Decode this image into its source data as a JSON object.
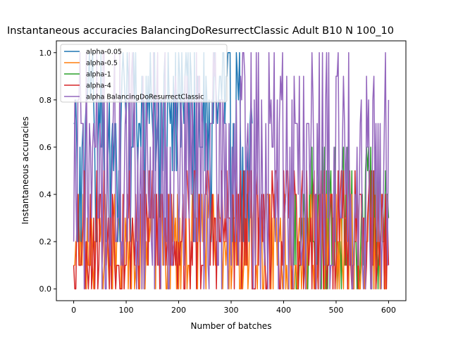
{
  "chart_data": {
    "type": "line",
    "title": "Instantaneous accuracies BalancingDoResurrectClassic Adult B10 N 100_10",
    "xlabel": "Number of batches",
    "ylabel": "Instantaneous accuracies",
    "xlim": [
      -33,
      633
    ],
    "ylim": [
      -0.05,
      1.05
    ],
    "xticks": [
      "0",
      "100",
      "200",
      "300",
      "400",
      "500",
      "600"
    ],
    "yticks": [
      "0.0",
      "0.2",
      "0.4",
      "0.6",
      "0.8",
      "1.0"
    ],
    "grid": false,
    "legend_position": "top-left",
    "x_range": [
      0,
      600
    ],
    "series": [
      {
        "name": "alpha-0.05",
        "color": "#1f77b4",
        "visible_x_range": [
          0,
          340
        ],
        "levels": [
          0.6,
          0.7,
          0.8,
          0.9,
          1.0,
          0.2,
          0.5
        ],
        "note_values": [
          0.2,
          0.8,
          0.7,
          0.6,
          0.9,
          0.7,
          0.8,
          1.0,
          0.6,
          0.7
        ]
      },
      {
        "name": "alpha-0.5",
        "color": "#ff7f0e",
        "visible_x_range": [
          0,
          600
        ],
        "levels": [
          0.0,
          0.1,
          0.2,
          0.3,
          0.4
        ]
      },
      {
        "name": "alpha-1",
        "color": "#2ca02c",
        "visible_x_range": [
          420,
          600
        ],
        "levels": [
          0.0,
          0.1,
          0.2,
          0.3,
          0.4,
          0.5,
          0.6
        ]
      },
      {
        "name": "alpha-4",
        "color": "#d62728",
        "visible_x_range": [
          0,
          600
        ],
        "levels": [
          0.0,
          0.1,
          0.2,
          0.3,
          0.4,
          0.5
        ]
      },
      {
        "name": "alpha BalancingDoResurrectClassic",
        "color": "#9467bd",
        "visible_x_range": [
          0,
          600
        ],
        "levels": [
          0.0,
          0.1,
          0.2,
          0.3,
          0.4,
          0.6,
          0.7,
          0.8,
          0.9,
          1.0
        ]
      }
    ]
  }
}
